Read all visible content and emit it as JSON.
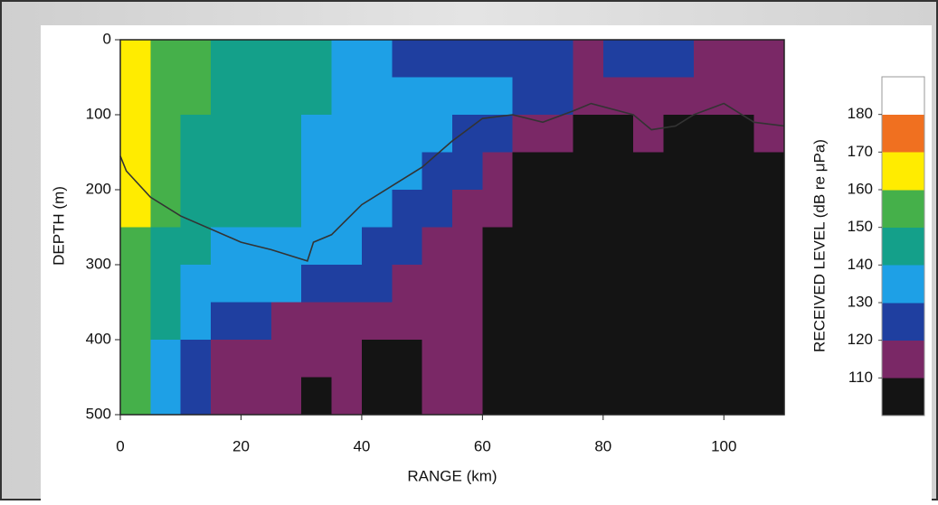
{
  "chart_data": {
    "type": "heatmap",
    "xlabel": "RANGE (km)",
    "ylabel": "DEPTH (m)",
    "colorbar_label": "RECEIVED LEVEL (dB re μPa)",
    "x": [
      0,
      5,
      10,
      15,
      20,
      25,
      30,
      35,
      40,
      45,
      50,
      55,
      60,
      65,
      70,
      75,
      80,
      85,
      90,
      95,
      100,
      105,
      110
    ],
    "y": [
      0,
      50,
      100,
      150,
      200,
      250,
      300,
      350,
      400,
      450,
      500
    ],
    "z": [
      [
        160,
        150,
        150,
        140,
        140,
        140,
        140,
        130,
        130,
        120,
        120,
        120,
        120,
        120,
        120,
        110,
        120,
        120,
        120,
        110,
        110,
        110
      ],
      [
        160,
        150,
        150,
        140,
        140,
        140,
        140,
        130,
        130,
        130,
        130,
        130,
        130,
        120,
        120,
        110,
        110,
        110,
        110,
        110,
        110,
        110
      ],
      [
        160,
        150,
        140,
        140,
        140,
        140,
        130,
        130,
        130,
        130,
        130,
        120,
        120,
        110,
        110,
        100,
        100,
        110,
        100,
        100,
        100,
        110
      ],
      [
        160,
        150,
        140,
        140,
        140,
        140,
        130,
        130,
        130,
        130,
        120,
        120,
        110,
        100,
        100,
        100,
        100,
        100,
        100,
        100,
        100,
        100
      ],
      [
        160,
        150,
        140,
        140,
        140,
        140,
        130,
        130,
        130,
        120,
        120,
        110,
        110,
        100,
        100,
        100,
        100,
        100,
        100,
        100,
        100,
        100
      ],
      [
        150,
        140,
        140,
        130,
        130,
        130,
        130,
        130,
        120,
        120,
        110,
        110,
        100,
        100,
        100,
        100,
        100,
        100,
        100,
        100,
        100,
        100
      ],
      [
        150,
        140,
        130,
        130,
        130,
        130,
        120,
        120,
        120,
        110,
        110,
        110,
        100,
        100,
        100,
        100,
        100,
        100,
        100,
        100,
        100,
        100
      ],
      [
        150,
        140,
        130,
        120,
        120,
        110,
        110,
        110,
        110,
        110,
        110,
        110,
        100,
        100,
        100,
        100,
        100,
        100,
        100,
        100,
        100,
        100
      ],
      [
        150,
        130,
        120,
        110,
        110,
        110,
        110,
        110,
        100,
        100,
        110,
        110,
        100,
        100,
        100,
        100,
        100,
        100,
        100,
        100,
        100,
        100
      ],
      [
        150,
        130,
        120,
        110,
        110,
        110,
        100,
        110,
        100,
        100,
        110,
        110,
        100,
        100,
        100,
        100,
        100,
        100,
        100,
        100,
        100,
        100
      ]
    ],
    "xlim": [
      0,
      110
    ],
    "xticks": [
      0,
      20,
      40,
      60,
      80,
      100
    ],
    "ylim": [
      0,
      500
    ],
    "yticks": [
      0,
      100,
      200,
      300,
      400,
      500
    ],
    "y_inverted": true,
    "clim": [
      100,
      190
    ],
    "cticks": [
      110,
      120,
      130,
      140,
      150,
      160,
      170,
      180
    ],
    "colors": [
      "#141414",
      "#7a2866",
      "#1f3fa0",
      "#1ea0e6",
      "#14a08a",
      "#45b04a",
      "#ffec00",
      "#f07020",
      "#ffffff"
    ],
    "line": {
      "color": "#333333",
      "x": [
        0,
        1,
        5,
        10,
        20,
        25,
        31,
        32,
        35,
        40,
        45,
        50,
        55,
        60,
        65,
        70,
        75,
        78,
        85,
        88,
        92,
        95,
        100,
        102,
        105,
        110
      ],
      "values": [
        155,
        175,
        210,
        235,
        270,
        280,
        295,
        270,
        260,
        220,
        195,
        170,
        135,
        105,
        100,
        110,
        95,
        85,
        100,
        120,
        115,
        100,
        85,
        95,
        110,
        115
      ]
    }
  }
}
